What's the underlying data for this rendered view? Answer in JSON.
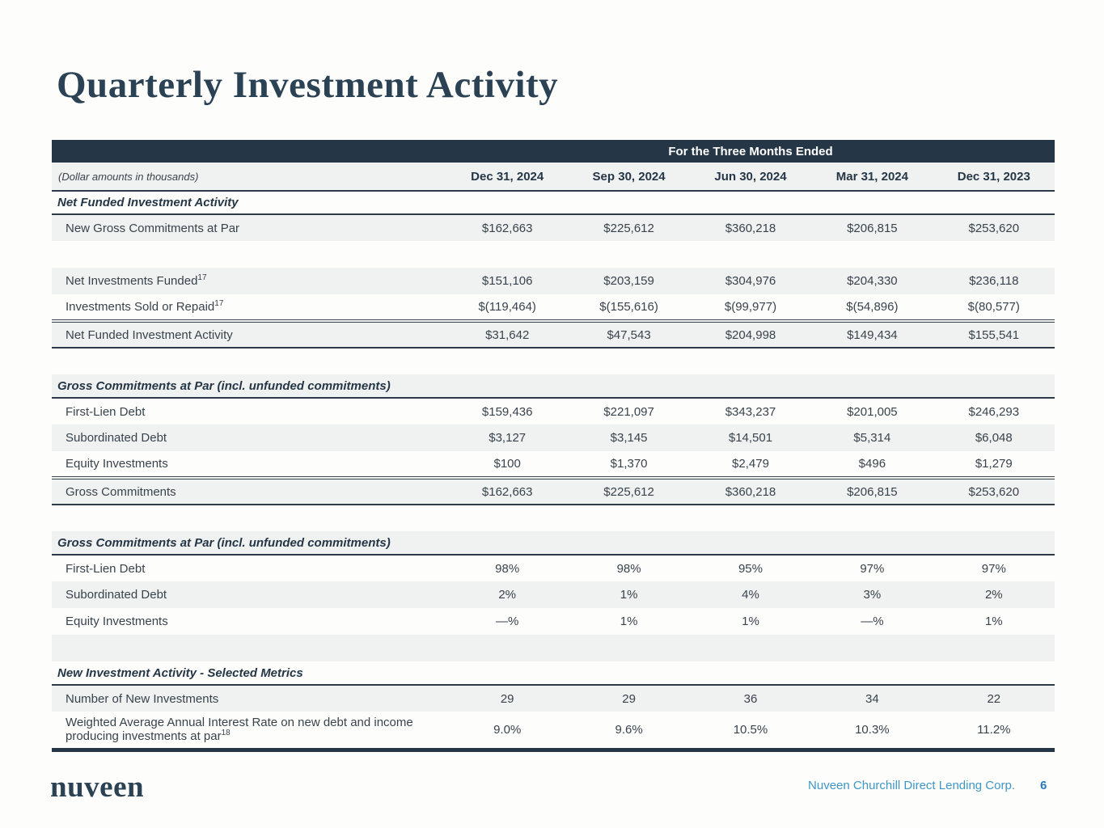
{
  "page": {
    "title": "Quarterly Investment Activity",
    "footer": {
      "logo": "nuveen",
      "entity": "Nuveen Churchill Direct Lending Corp.",
      "page_number": "6"
    }
  },
  "colors": {
    "navy": "#253746",
    "row_gray": "#F0F1F1",
    "title_navy": "#2B4254",
    "footer_blue": "#3E96C5",
    "page_number_blue": "#2878B8"
  },
  "table": {
    "spanner": "For the Three Months Ended",
    "note": "(Dollar amounts in thousands)",
    "columns": [
      "Dec 31, 2024",
      "Sep 30, 2024",
      "Jun 30, 2024",
      "Mar 31, 2024",
      "Dec 31, 2023"
    ],
    "rows": [
      {
        "type": "section",
        "label": "Net Funded Investment Activity",
        "bg": "white"
      },
      {
        "type": "data",
        "label": "New Gross Commitments at Par",
        "sup": "",
        "values": [
          "$162,663",
          "$225,612",
          "$360,218",
          "$206,815",
          "$253,620"
        ],
        "bg": "gray"
      },
      {
        "type": "blank",
        "bg": "white"
      },
      {
        "type": "data",
        "label": "Net Investments Funded",
        "sup": "17",
        "values": [
          "$151,106",
          "$203,159",
          "$304,976",
          "$204,330",
          "$236,118"
        ],
        "bg": "gray"
      },
      {
        "type": "data",
        "label": "Investments Sold or Repaid",
        "sup": "17",
        "values": [
          "$(119,464)",
          "$(155,616)",
          "$(99,977)",
          "$(54,896)",
          "$(80,577)"
        ],
        "bg": "white"
      },
      {
        "type": "data",
        "label": "Net Funded Investment Activity",
        "sup": "",
        "values": [
          "$31,642",
          "$47,543",
          "$204,998",
          "$149,434",
          "$155,541"
        ],
        "bg": "gray",
        "total": true
      },
      {
        "type": "gap",
        "bg": "white"
      },
      {
        "type": "section",
        "label": "Gross Commitments at Par (incl. unfunded commitments)",
        "bg": "gray"
      },
      {
        "type": "data",
        "label": "First-Lien Debt",
        "sup": "",
        "values": [
          "$159,436",
          "$221,097",
          "$343,237",
          "$201,005",
          "$246,293"
        ],
        "bg": "white"
      },
      {
        "type": "data",
        "label": "Subordinated Debt",
        "sup": "",
        "values": [
          "$3,127",
          "$3,145",
          "$14,501",
          "$5,314",
          "$6,048"
        ],
        "bg": "gray"
      },
      {
        "type": "data",
        "label": "Equity Investments",
        "sup": "",
        "values": [
          "$100",
          "$1,370",
          "$2,479",
          "$496",
          "$1,279"
        ],
        "bg": "white"
      },
      {
        "type": "data",
        "label": "Gross Commitments",
        "sup": "",
        "values": [
          "$162,663",
          "$225,612",
          "$360,218",
          "$206,815",
          "$253,620"
        ],
        "bg": "gray",
        "total": true
      },
      {
        "type": "gap",
        "bg": "white"
      },
      {
        "type": "section",
        "label": "Gross Commitments at Par (incl. unfunded commitments)",
        "bg": "gray"
      },
      {
        "type": "data",
        "label": "First-Lien Debt",
        "sup": "",
        "values": [
          "98%",
          "98%",
          "95%",
          "97%",
          "97%"
        ],
        "bg": "white"
      },
      {
        "type": "data",
        "label": "Subordinated Debt",
        "sup": "",
        "values": [
          "2%",
          "1%",
          "4%",
          "3%",
          "2%"
        ],
        "bg": "gray"
      },
      {
        "type": "data",
        "label": "Equity Investments",
        "sup": "",
        "values": [
          "—%",
          "1%",
          "1%",
          "—%",
          "1%"
        ],
        "bg": "white"
      },
      {
        "type": "blank",
        "bg": "gray"
      },
      {
        "type": "section",
        "label": "New Investment Activity - Selected Metrics",
        "bg": "white"
      },
      {
        "type": "data",
        "label": "Number of New Investments",
        "sup": "",
        "values": [
          "29",
          "29",
          "36",
          "34",
          "22"
        ],
        "bg": "gray"
      },
      {
        "type": "data",
        "label": "Weighted Average Annual Interest Rate on new debt and income producing investments at par",
        "sup": "18",
        "values": [
          "9.0%",
          "9.6%",
          "10.5%",
          "10.3%",
          "11.2%"
        ],
        "bg": "white"
      }
    ]
  }
}
